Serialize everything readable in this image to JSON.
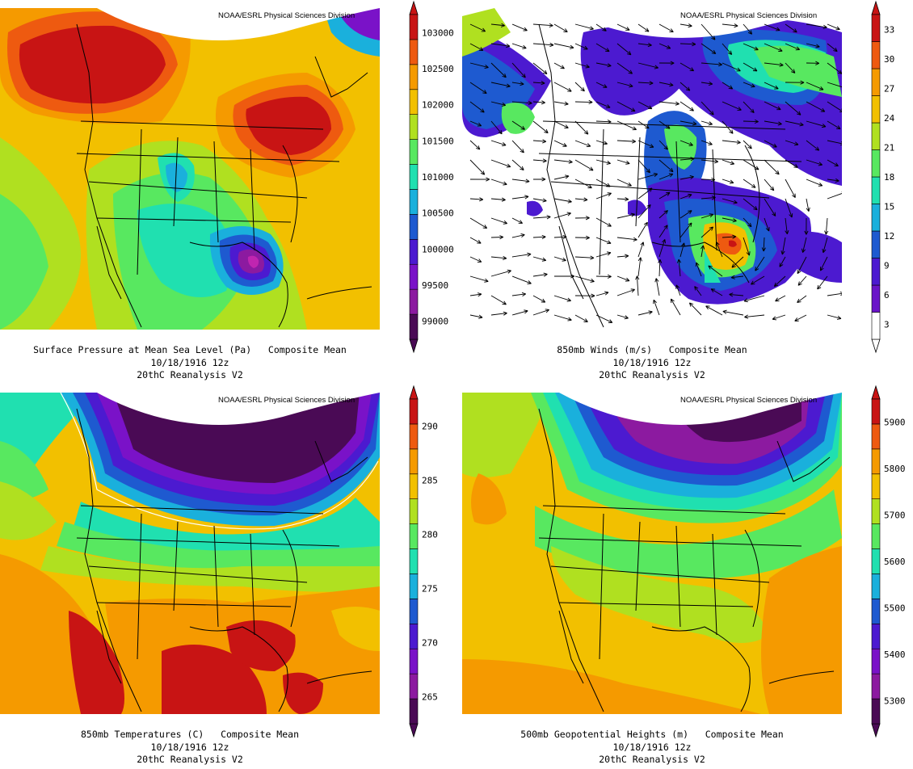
{
  "credit": "NOAA/ESRL Physical Sciences Division",
  "panels": [
    {
      "id": "slp",
      "title": "Surface Pressure at Mean Sea Level (Pa)   Composite Mean",
      "date": "10/18/1916 12z",
      "source": "20thC Reanalysis V2",
      "colorbar_labels": [
        "99000",
        "99500",
        "100000",
        "100500",
        "101000",
        "101500",
        "102000",
        "102500",
        "103000"
      ],
      "colorbar_colors": [
        "#4a0a55",
        "#8c1aa0",
        "#7a12c8",
        "#4c1ad0",
        "#1e5ad0",
        "#1ab0dc",
        "#20e0b0",
        "#58e860",
        "#b0e020",
        "#f2c000",
        "#f59a00",
        "#ee5a10",
        "#c81414"
      ]
    },
    {
      "id": "wind",
      "title": "850mb Winds (m/s)   Composite Mean",
      "date": "10/18/1916 12z",
      "source": "20thC Reanalysis V2",
      "colorbar_labels": [
        "3",
        "6",
        "9",
        "12",
        "15",
        "18",
        "21",
        "24",
        "27",
        "30",
        "33"
      ],
      "colorbar_colors": [
        "#ffffff",
        "#6a14c8",
        "#4c1ad0",
        "#1e5ad0",
        "#1ab0dc",
        "#20e0b0",
        "#58e860",
        "#b0e020",
        "#f2c000",
        "#f59a00",
        "#ee5a10",
        "#c81414"
      ]
    },
    {
      "id": "t850",
      "title": "850mb Temperatures (C)   Composite Mean",
      "date": "10/18/1916 12z",
      "source": "20thC Reanalysis V2",
      "colorbar_labels": [
        "265",
        "270",
        "275",
        "280",
        "285",
        "290"
      ],
      "colorbar_colors": [
        "#4a0a55",
        "#8c1aa0",
        "#7a12c8",
        "#4c1ad0",
        "#1e5ad0",
        "#1ab0dc",
        "#20e0b0",
        "#58e860",
        "#b0e020",
        "#f2c000",
        "#f59a00",
        "#ee5a10",
        "#c81414"
      ]
    },
    {
      "id": "z500",
      "title": "500mb Geopotential Heights (m)   Composite Mean",
      "date": "10/18/1916 12z",
      "source": "20thC Reanalysis V2",
      "colorbar_labels": [
        "5300",
        "5400",
        "5500",
        "5600",
        "5700",
        "5800",
        "5900"
      ],
      "colorbar_colors": [
        "#4a0a55",
        "#8c1aa0",
        "#7a12c8",
        "#4c1ad0",
        "#1e5ad0",
        "#1ab0dc",
        "#20e0b0",
        "#58e860",
        "#b0e020",
        "#f2c000",
        "#f59a00",
        "#ee5a10",
        "#c81414"
      ]
    }
  ]
}
